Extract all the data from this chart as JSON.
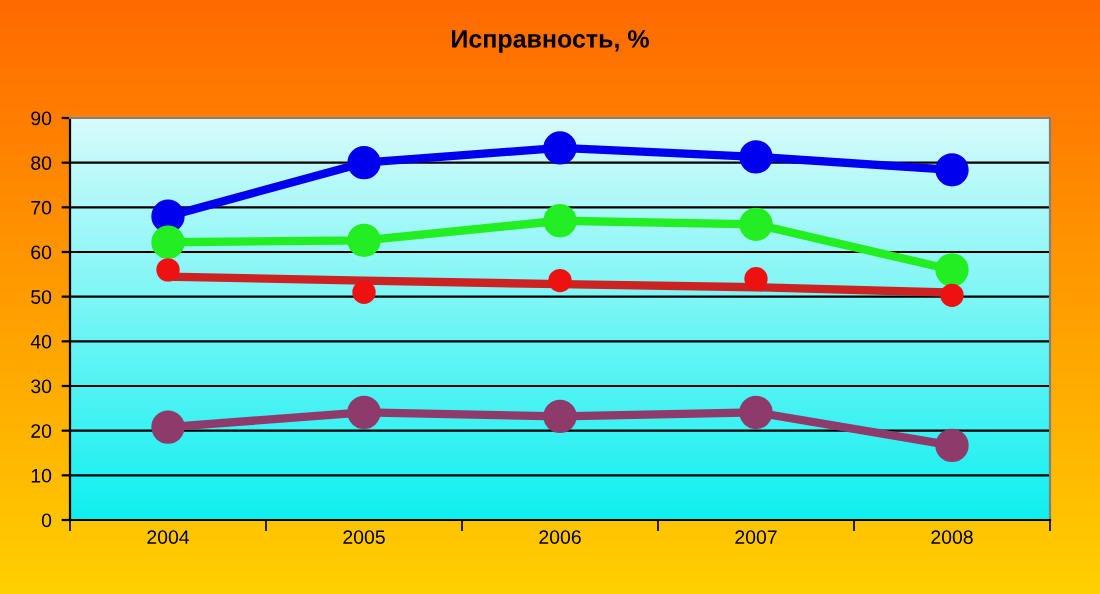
{
  "chart_data": {
    "type": "line",
    "title": "Исправность, %",
    "categories": [
      "2004",
      "2005",
      "2006",
      "2007",
      "2008"
    ],
    "ylim": [
      0,
      90
    ],
    "yticks": [
      0,
      10,
      20,
      30,
      40,
      50,
      60,
      70,
      80,
      90
    ],
    "grid": "y",
    "legend": false,
    "marker": "circle",
    "series": [
      {
        "color": "#0000ee",
        "values": [
          68,
          80,
          83.3,
          81.3,
          78.4
        ]
      },
      {
        "color": "#22ee22",
        "values": [
          62.2,
          62.6,
          67,
          66.2,
          56
        ]
      },
      {
        "color": "#cc2222",
        "type": "line",
        "marker": "none",
        "values": [
          54.5,
          53.6,
          52.8,
          52.1,
          50.9
        ]
      },
      {
        "color": "#ee1111",
        "type": "scatter",
        "values": [
          56,
          51,
          53.6,
          54,
          50.3
        ]
      },
      {
        "color": "#8e3a6a",
        "values": [
          20.8,
          24.1,
          23.2,
          24.1,
          16.7
        ]
      }
    ]
  }
}
